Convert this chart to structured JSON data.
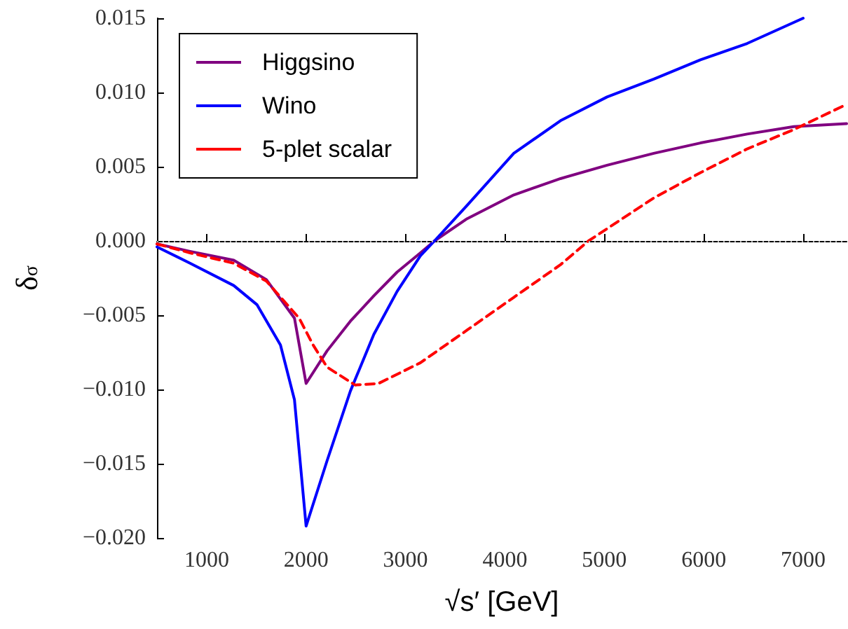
{
  "chart_data": {
    "type": "line",
    "xlabel": "√s′ [GeV]",
    "ylabel": "δ$_{σ}$",
    "xlim": [
      500,
      7437
    ],
    "xticks": [
      1000,
      2000,
      3000,
      4000,
      5000,
      6000,
      7000
    ],
    "ylim": [
      -0.02,
      0.015
    ],
    "yticks": [
      {
        "value": -0.02,
        "label": "−0.020"
      },
      {
        "value": -0.015,
        "label": "−0.015"
      },
      {
        "value": -0.01,
        "label": "−0.010"
      },
      {
        "value": -0.005,
        "label": "−0.005"
      },
      {
        "value": 0,
        "label": "0.000"
      },
      {
        "value": 0.005,
        "label": "0.005"
      },
      {
        "value": 0.01,
        "label": "0.010"
      },
      {
        "value": 0.015,
        "label": "0.015"
      }
    ],
    "grid": false,
    "legend": "top left",
    "marker": "none",
    "ref_lines": [
      {
        "axis": "y",
        "value": 0,
        "color": "#b0b0b0",
        "line_style": "dotted"
      }
    ],
    "series": [
      {
        "name": "Higgsino",
        "color": "#800080",
        "line_style": "solid",
        "x": [
          500,
          832,
          1272,
          1600,
          1883,
          2000,
          2211,
          2446,
          2681,
          2915,
          3150,
          3291,
          3620,
          4089,
          4559,
          5028,
          5498,
          5967,
          6437,
          6906,
          7437
        ],
        "values": [
          -0.0002,
          -0.0007,
          -0.0013,
          -0.0026,
          -0.0052,
          -0.0096,
          -0.0074,
          -0.0054,
          -0.0037,
          -0.0021,
          -0.0008,
          0,
          0.0015,
          0.0031,
          0.0042,
          0.0051,
          0.0059,
          0.0066,
          0.0072,
          0.0077,
          0.0079
        ]
      },
      {
        "name": "Wino",
        "color": "#0000ff",
        "line_style": "solid",
        "x": [
          500,
          832,
          1272,
          1507,
          1742,
          1883,
          2000,
          2211,
          2446,
          2681,
          2915,
          3150,
          3291,
          3620,
          4089,
          4559,
          5028,
          5498,
          5967,
          6437,
          7000
        ],
        "values": [
          -0.0004,
          -0.0015,
          -0.003,
          -0.0043,
          -0.007,
          -0.0107,
          -0.0192,
          -0.0148,
          -0.0101,
          -0.0063,
          -0.0034,
          -0.001,
          0,
          0.0024,
          0.0059,
          0.0081,
          0.0097,
          0.0109,
          0.0122,
          0.0133,
          0.015
        ]
      },
      {
        "name": "5-plet scalar",
        "color": "#ff0000",
        "line_style": "dashed",
        "x": [
          500,
          832,
          1272,
          1600,
          1930,
          2070,
          2211,
          2493,
          2728,
          3150,
          3620,
          4089,
          4559,
          4840,
          5498,
          5967,
          6437,
          6906,
          7437
        ],
        "values": [
          -0.0002,
          -0.0008,
          -0.0015,
          -0.0027,
          -0.0052,
          -0.007,
          -0.0085,
          -0.0097,
          -0.0096,
          -0.0082,
          -0.006,
          -0.0038,
          -0.0016,
          0,
          0.0029,
          0.0046,
          0.0062,
          0.0075,
          0.0092
        ]
      }
    ]
  }
}
